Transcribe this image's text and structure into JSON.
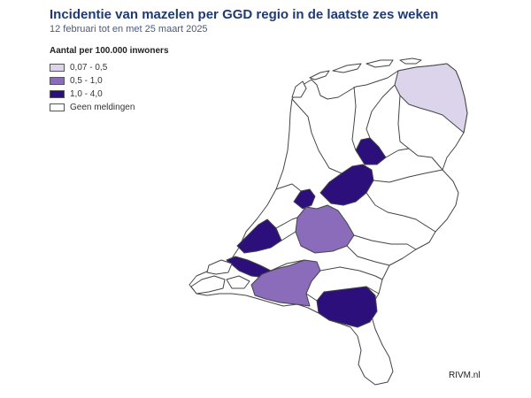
{
  "title": "Incidentie van mazelen per GGD regio in de laatste zes weken",
  "subtitle": "12 februari tot en met 25 maart 2025",
  "legend": {
    "title": "Aantal per 100.000 inwoners",
    "items": [
      {
        "label": "0,07 - 0,5",
        "color": "#dcd4ea"
      },
      {
        "label": "0,5 - 1,0",
        "color": "#8a6cbb"
      },
      {
        "label": "1,0 - 4,0",
        "color": "#2c0f7a"
      },
      {
        "label": "Geen meldingen",
        "color": "#ffffff"
      }
    ]
  },
  "credit": "RIVM.nl",
  "colors": {
    "border": "#444444",
    "nodata": "#ffffff"
  }
}
